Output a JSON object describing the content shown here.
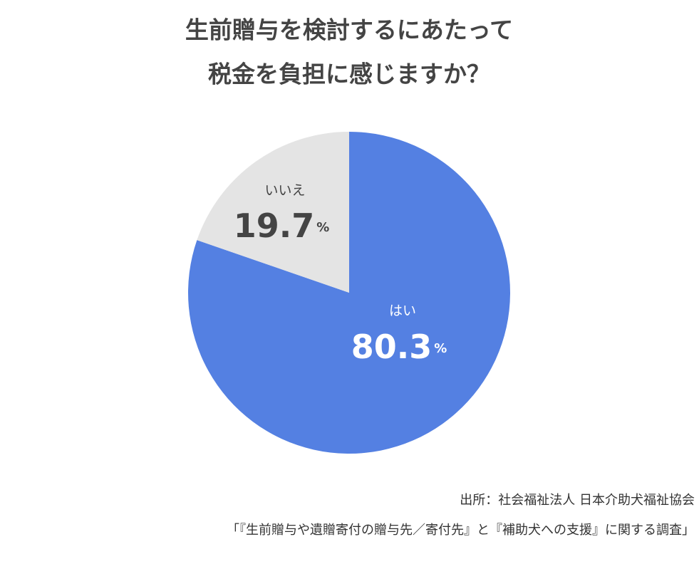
{
  "chart_data": {
    "type": "pie",
    "title": [
      "生前贈与を検討するにあたって",
      "税金を負担に感じますか？"
    ],
    "categories": [
      "はい",
      "いいえ"
    ],
    "values": [
      80.3,
      19.7
    ],
    "unit": "%",
    "colors": [
      "#5480e2",
      "#e4e4e4"
    ],
    "label_colors": [
      "#ffffff",
      "#444444"
    ],
    "source": [
      "出所：社会福祉法人 日本介助犬福祉協会",
      "「『生前贈与や遺贈寄付の贈与先／寄付先』と『補助犬への支援』に関する調査」"
    ]
  }
}
